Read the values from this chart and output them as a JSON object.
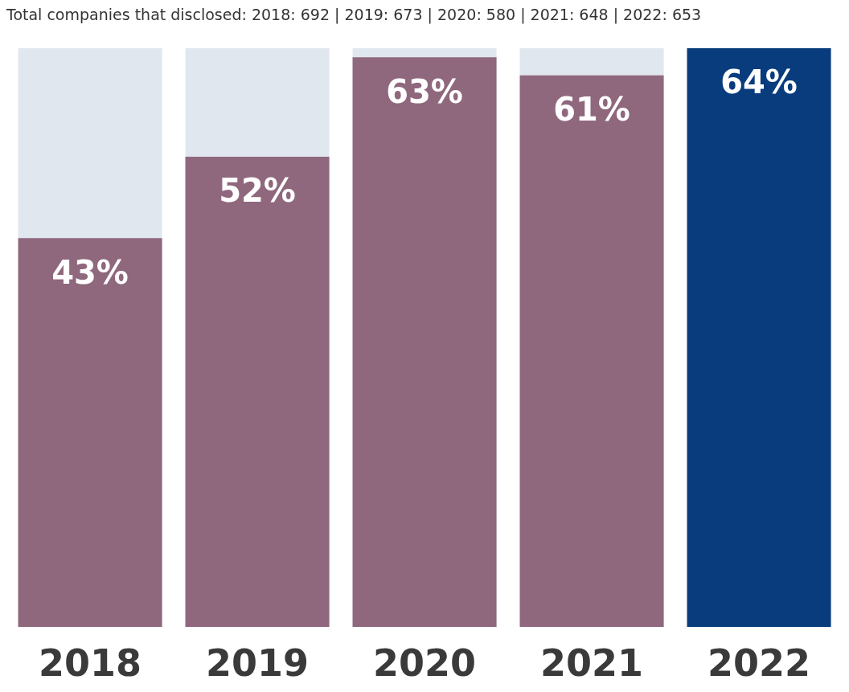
{
  "chart_data": {
    "type": "bar",
    "title": "Total companies that disclosed: 2018: 692 | 2019: 673 | 2020: 580 | 2021: 648 | 2022: 653",
    "categories": [
      "2018",
      "2019",
      "2020",
      "2021",
      "2022"
    ],
    "values": [
      43,
      52,
      63,
      61,
      64
    ],
    "colors": [
      "#8f687d",
      "#8f687d",
      "#8f687d",
      "#8f687d",
      "#083c7c"
    ],
    "value_labels": [
      "43%",
      "52%",
      "63%",
      "61%",
      "64%"
    ],
    "ylim": [
      0,
      64
    ],
    "tick_labels": "x"
  }
}
